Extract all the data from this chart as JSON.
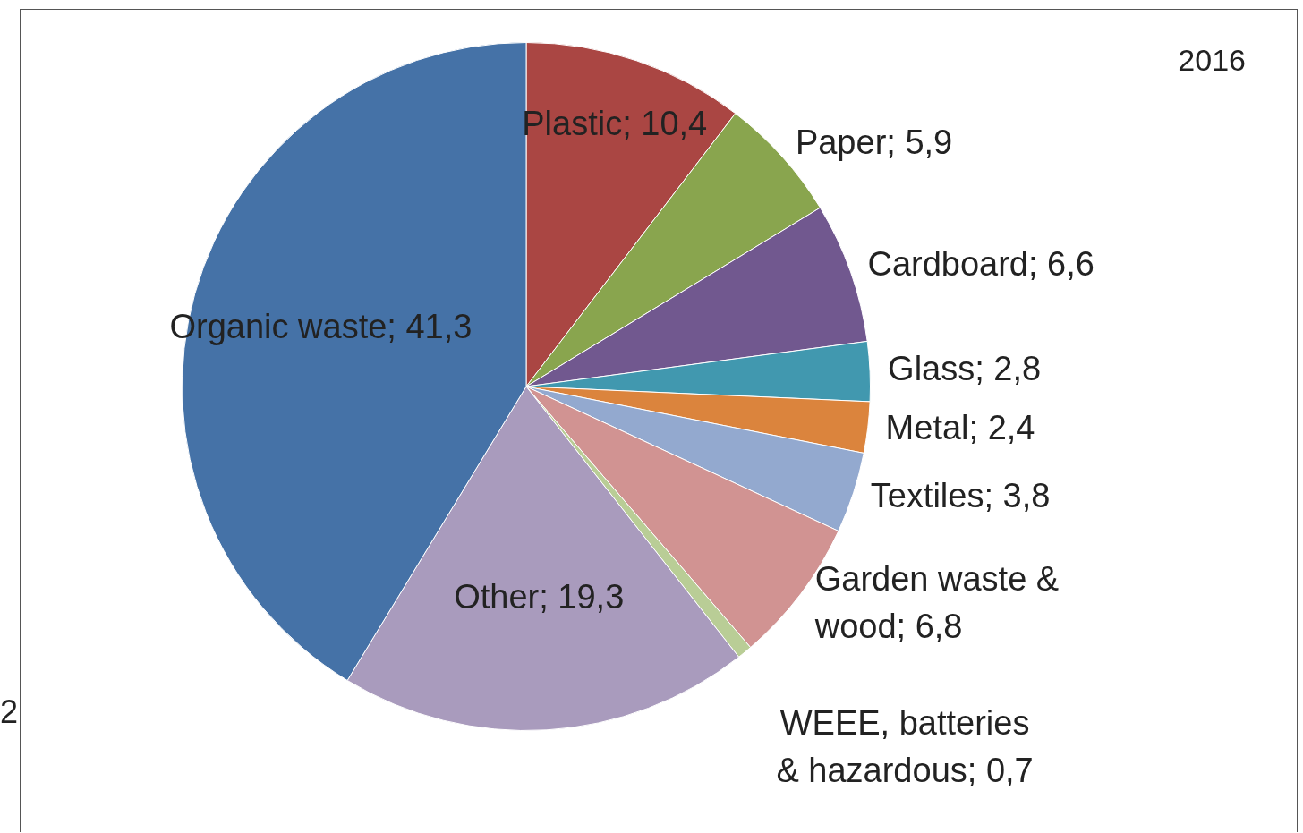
{
  "chart_data": {
    "type": "pie",
    "title": "2016",
    "categories": [
      "Plastic",
      "Paper",
      "Cardboard",
      "Glass",
      "Metal",
      "Textiles",
      "Garden waste & wood",
      "WEEE, batteries & hazardous",
      "Other",
      "Organic waste"
    ],
    "value_labels": [
      "10,4",
      "5,9",
      "6,6",
      "2,8",
      "2,4",
      "3,8",
      "6,8",
      "0,7",
      "19,3",
      "41,3"
    ],
    "values": [
      10.4,
      5.9,
      6.6,
      2.8,
      2.4,
      3.8,
      6.8,
      0.7,
      19.3,
      41.3
    ],
    "colors": [
      "#aa4643",
      "#89a54e",
      "#71588f",
      "#4198af",
      "#db843d",
      "#93a9cf",
      "#d19392",
      "#b9cd96",
      "#a99bbd",
      "#4572a7"
    ],
    "annotations": [
      "2"
    ]
  }
}
